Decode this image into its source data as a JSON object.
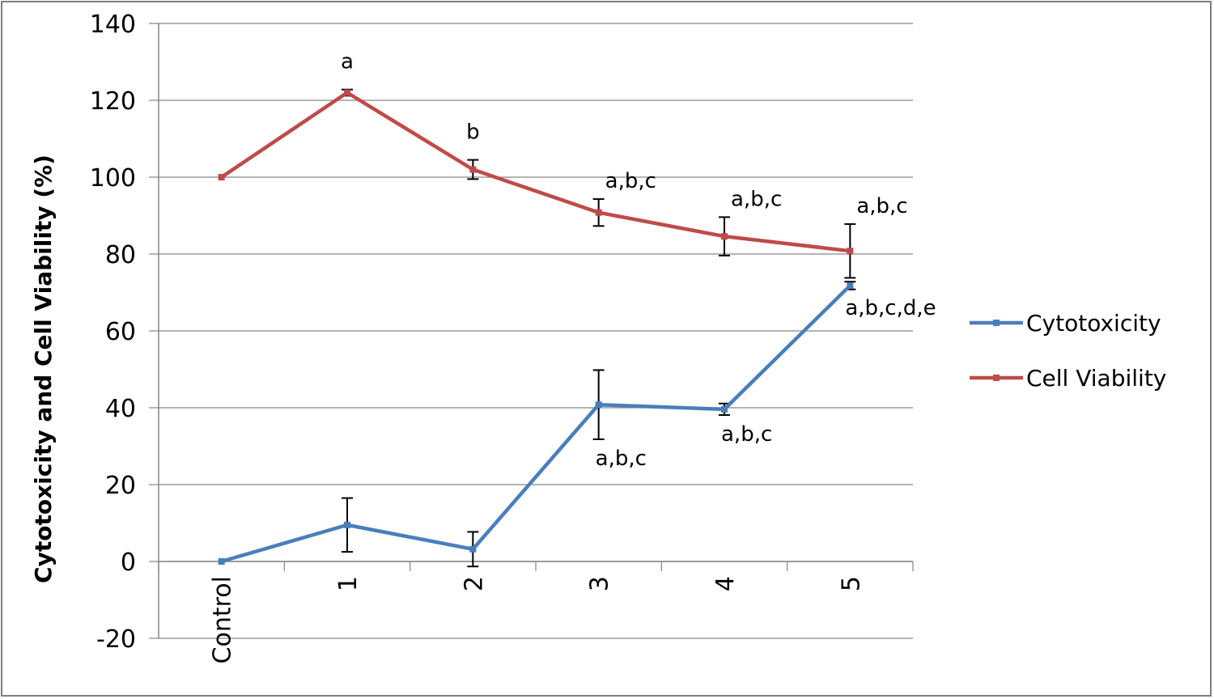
{
  "chart_data": {
    "type": "line",
    "ylabel": "Cytotoxicity  and Cell Viability (%)",
    "xlabel": "",
    "categories": [
      "Control",
      "1",
      "2",
      "3",
      "4",
      "5"
    ],
    "ylim": [
      -20,
      140
    ],
    "yticks": [
      "-20",
      "0",
      "20",
      "40",
      "60",
      "80",
      "100",
      "120",
      "140"
    ],
    "ytick_values": [
      -20,
      0,
      20,
      40,
      60,
      80,
      100,
      120,
      140
    ],
    "grid": "horizontal",
    "legend_position": "right",
    "series": [
      {
        "name": "Cytotoxicity",
        "color": "#4a7ebb",
        "values": [
          0,
          9.5,
          3.2,
          40.8,
          39.6,
          71.8
        ],
        "error": [
          0,
          7,
          4.5,
          9,
          1.5,
          1
        ],
        "annotations": [
          "",
          "",
          "",
          "a,b,c",
          "a,b,c",
          "a,b,c,d,e"
        ],
        "annotation_side": "below"
      },
      {
        "name": "Cell Viability",
        "color": "#be4b48",
        "values": [
          100,
          122,
          102,
          90.8,
          84.6,
          80.8
        ],
        "error": [
          0,
          0.8,
          2.5,
          3.5,
          5,
          7
        ],
        "annotations": [
          "",
          "a",
          "b",
          "a,b,c",
          "a,b,c",
          "a,b,c"
        ],
        "annotation_side": "above"
      }
    ]
  }
}
